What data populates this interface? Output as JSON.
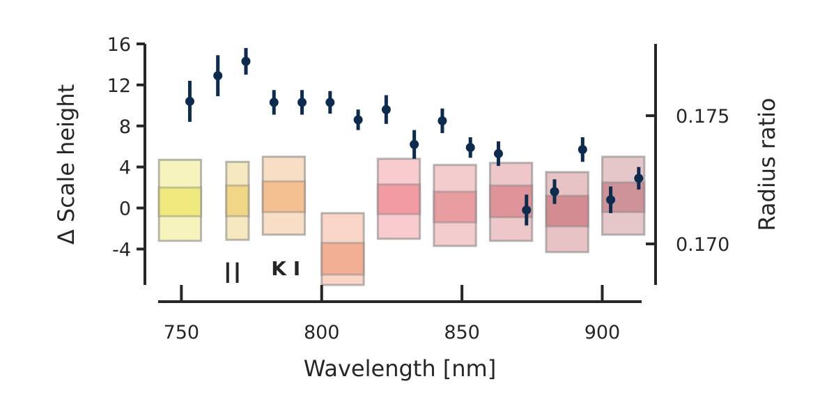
{
  "chart_data": {
    "type": "scatter",
    "xlabel": "Wavelength [nm]",
    "ylabel": "Δ Scale height",
    "y2label": "Radius ratio",
    "xlim": [
      737,
      919
    ],
    "ylim": [
      -7.5,
      16
    ],
    "y2lim": [
      0.1684,
      0.1778
    ],
    "x_ticks": [
      750,
      800,
      850,
      900
    ],
    "y_ticks": [
      16,
      12,
      8,
      4,
      0,
      -4
    ],
    "y_tick_labels": [
      "16",
      "12",
      "8",
      "4",
      "0",
      "-4"
    ],
    "y2_ticks": [
      0.175,
      0.17
    ],
    "y2_tick_labels": [
      "0.175",
      "0.170"
    ],
    "points": [
      {
        "x": 753,
        "y": 10.4,
        "err": 2.0
      },
      {
        "x": 763,
        "y": 12.9,
        "err": 2.0
      },
      {
        "x": 773,
        "y": 14.3,
        "err": 1.3
      },
      {
        "x": 783,
        "y": 10.3,
        "err": 1.2
      },
      {
        "x": 793,
        "y": 10.3,
        "err": 1.2
      },
      {
        "x": 803,
        "y": 10.3,
        "err": 1.1
      },
      {
        "x": 813,
        "y": 8.6,
        "err": 1.0
      },
      {
        "x": 823,
        "y": 9.6,
        "err": 1.4
      },
      {
        "x": 833,
        "y": 6.2,
        "err": 1.4
      },
      {
        "x": 843,
        "y": 8.5,
        "err": 1.2
      },
      {
        "x": 853,
        "y": 5.9,
        "err": 1.0
      },
      {
        "x": 863,
        "y": 5.3,
        "err": 1.2
      },
      {
        "x": 873,
        "y": -0.2,
        "err": 1.5
      },
      {
        "x": 883,
        "y": 1.6,
        "err": 1.2
      },
      {
        "x": 893,
        "y": 5.7,
        "err": 1.2
      },
      {
        "x": 903,
        "y": 0.8,
        "err": 1.3
      },
      {
        "x": 913,
        "y": 2.9,
        "err": 1.1
      }
    ],
    "bands": [
      {
        "x0": 742,
        "x1": 757,
        "inner": [
          -0.8,
          2.0
        ],
        "outer": [
          -3.2,
          4.7
        ],
        "color": "#ece56a"
      },
      {
        "x0": 766,
        "x1": 774,
        "inner": [
          -0.8,
          2.2
        ],
        "outer": [
          -3.1,
          4.5
        ],
        "color": "#edcf72"
      },
      {
        "x0": 779,
        "x1": 794,
        "inner": [
          -0.4,
          2.6
        ],
        "outer": [
          -2.6,
          5.0
        ],
        "color": "#f2b680"
      },
      {
        "x0": 800,
        "x1": 815,
        "inner": [
          -6.5,
          -3.4
        ],
        "outer": [
          -7.5,
          -0.5
        ],
        "color": "#f0a282"
      },
      {
        "x0": 820,
        "x1": 835,
        "inner": [
          -0.6,
          2.3
        ],
        "outer": [
          -3.0,
          4.8
        ],
        "color": "#ef8c93"
      },
      {
        "x0": 840,
        "x1": 855,
        "inner": [
          -1.4,
          1.6
        ],
        "outer": [
          -3.7,
          4.2
        ],
        "color": "#e48d92"
      },
      {
        "x0": 860,
        "x1": 875,
        "inner": [
          -0.9,
          2.2
        ],
        "outer": [
          -3.2,
          4.4
        ],
        "color": "#d9838a"
      },
      {
        "x0": 880,
        "x1": 895,
        "inner": [
          -1.8,
          1.2
        ],
        "outer": [
          -4.3,
          3.5
        ],
        "color": "#cc7a80"
      },
      {
        "x0": 900,
        "x1": 915,
        "inner": [
          -0.4,
          2.5
        ],
        "outer": [
          -2.6,
          5.0
        ],
        "color": "#c68288"
      }
    ],
    "line_markers": [
      {
        "x": 766.5,
        "y": -6.3,
        "len": 2.0
      },
      {
        "x": 769.9,
        "y": -6.3,
        "len": 2.0
      }
    ],
    "annotation": {
      "text": "K I",
      "x": 784,
      "y": -6.0
    }
  }
}
